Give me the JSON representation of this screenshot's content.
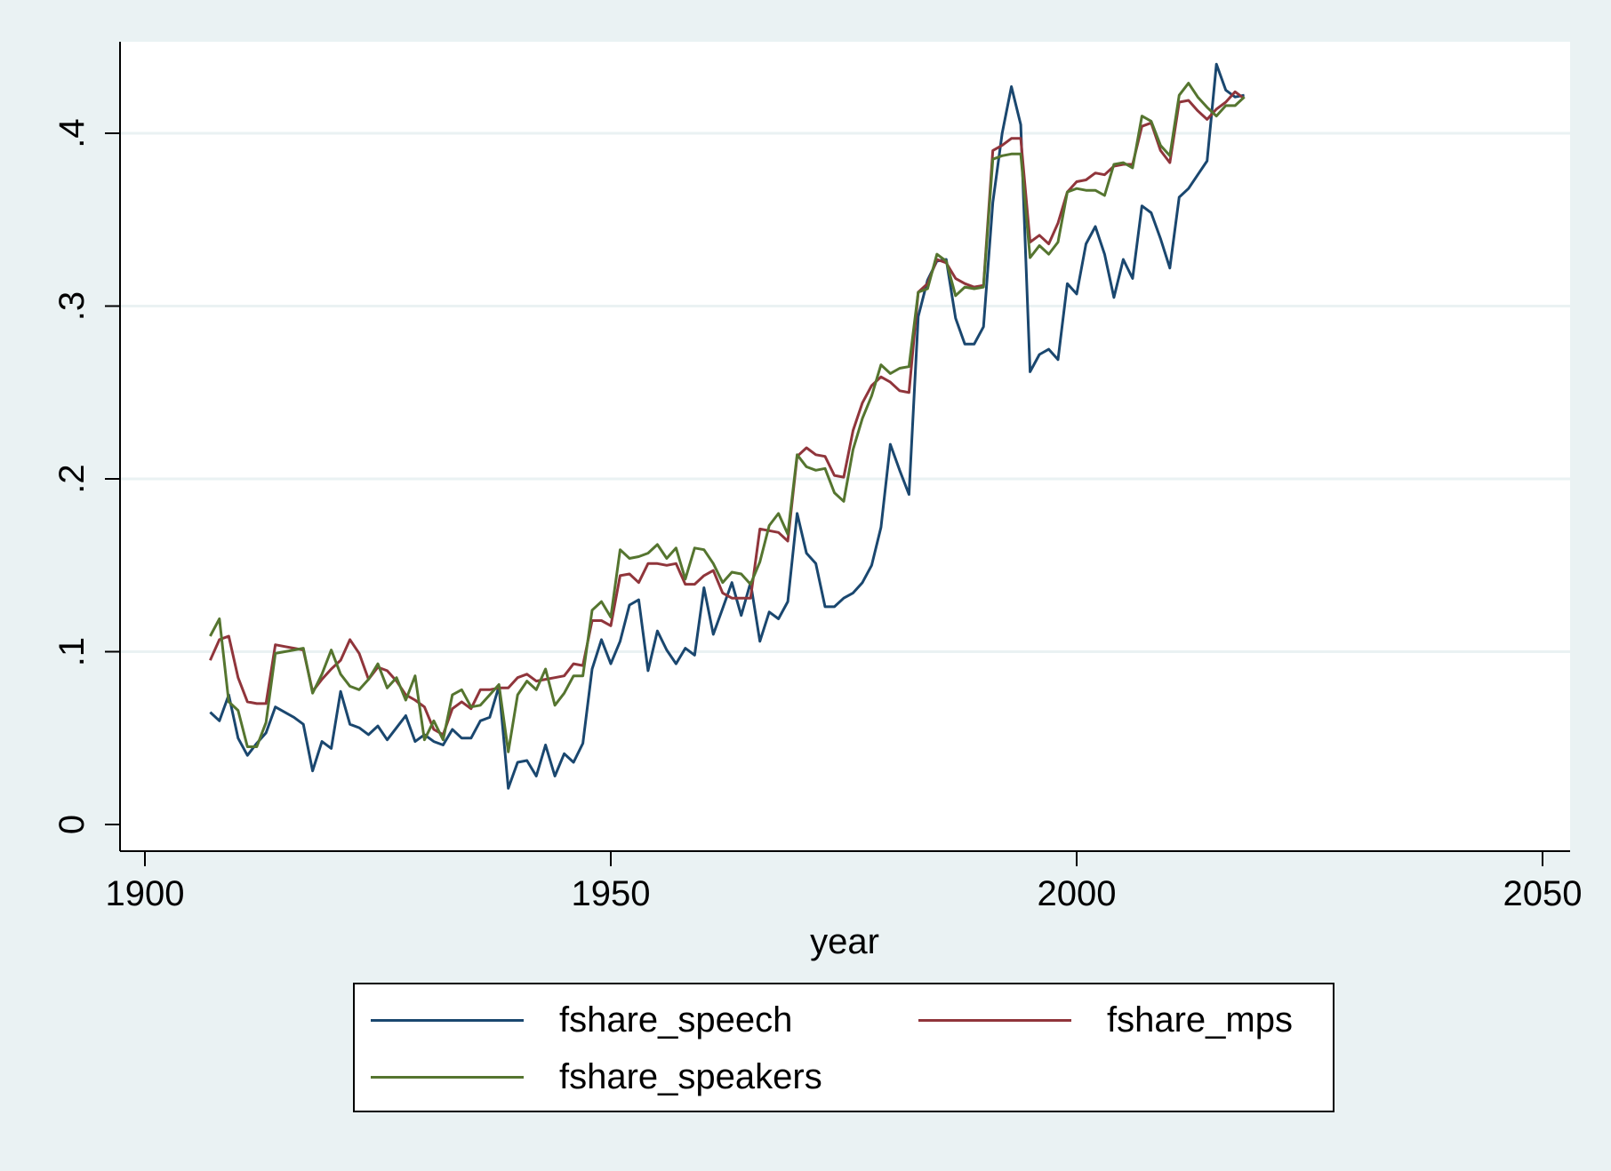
{
  "chart_data": {
    "type": "line",
    "xlabel": "year",
    "ylabel": "",
    "xlim": [
      1900,
      2050
    ],
    "ylim": [
      0,
      0.45
    ],
    "xticks": [
      1900,
      1950,
      2000,
      2050
    ],
    "xtick_labels": [
      "1900",
      "1950",
      "2000",
      "2050"
    ],
    "yticks": [
      0,
      0.1,
      0.2,
      0.3,
      0.4
    ],
    "ytick_labels": [
      "0",
      ".1",
      ".2",
      ".3",
      ".4"
    ],
    "grid": true,
    "legend_position": "bottom",
    "x": [
      1907,
      1908,
      1909,
      1910,
      1911,
      1912,
      1913,
      1914,
      1915,
      1916,
      1917,
      1918,
      1919,
      1920,
      1921,
      1922,
      1923,
      1924,
      1925,
      1926,
      1927,
      1928,
      1929,
      1930,
      1931,
      1932,
      1933,
      1934,
      1935,
      1936,
      1937,
      1938,
      1939,
      1940,
      1941,
      1942,
      1943,
      1944,
      1945,
      1946,
      1947,
      1948,
      1949,
      1950,
      1951,
      1952,
      1953,
      1954,
      1955,
      1956,
      1957,
      1958,
      1959,
      1960,
      1961,
      1962,
      1963,
      1964,
      1965,
      1966,
      1967,
      1968,
      1969,
      1970,
      1971,
      1972,
      1973,
      1974,
      1975,
      1976,
      1977,
      1978,
      1979,
      1980,
      1981,
      1982,
      1983,
      1984,
      1985,
      1986,
      1987,
      1988,
      1989,
      1990,
      1991,
      1992,
      1993,
      1994,
      1995,
      1996,
      1997,
      1998,
      1999,
      2000,
      2001,
      2002,
      2003,
      2004,
      2005,
      2006,
      2007,
      2008,
      2009,
      2010,
      2011,
      2012,
      2013,
      2014,
      2015,
      2016,
      2017,
      2018
    ],
    "series": [
      {
        "name": "fshare_speech",
        "color": "#1a476f",
        "values": [
          0.065,
          0.06,
          0.075,
          0.05,
          0.04,
          0.047,
          0.053,
          0.068,
          0.065,
          0.062,
          0.058,
          0.031,
          0.048,
          0.044,
          0.077,
          0.058,
          0.056,
          0.052,
          0.057,
          0.049,
          0.056,
          0.063,
          0.048,
          0.052,
          0.048,
          0.046,
          0.055,
          0.05,
          0.05,
          0.06,
          0.062,
          0.08,
          0.021,
          0.036,
          0.037,
          0.028,
          0.046,
          0.028,
          0.041,
          0.036,
          0.047,
          0.09,
          0.107,
          0.093,
          0.106,
          0.127,
          0.13,
          0.089,
          0.112,
          0.101,
          0.093,
          0.102,
          0.098,
          0.137,
          0.11,
          0.125,
          0.14,
          0.121,
          0.14,
          0.106,
          0.123,
          0.119,
          0.129,
          0.18,
          0.157,
          0.151,
          0.126,
          0.126,
          0.131,
          0.134,
          0.14,
          0.15,
          0.172,
          0.22,
          0.205,
          0.191,
          0.294,
          0.315,
          0.326,
          0.327,
          0.293,
          0.278,
          0.278,
          0.288,
          0.36,
          0.4,
          0.427,
          0.405,
          0.262,
          0.272,
          0.275,
          0.269,
          0.313,
          0.307,
          0.336,
          0.346,
          0.33,
          0.305,
          0.327,
          0.316,
          0.358,
          0.354,
          0.339,
          0.322,
          0.363,
          0.368,
          0.376,
          0.384,
          0.44,
          0.425,
          0.421,
          0.422
        ]
      },
      {
        "name": "fshare_mps",
        "color": "#90353b",
        "values": [
          0.095,
          0.107,
          0.109,
          0.085,
          0.071,
          0.07,
          0.07,
          0.104,
          0.103,
          0.102,
          0.101,
          0.077,
          0.084,
          0.09,
          0.095,
          0.107,
          0.099,
          0.084,
          0.091,
          0.089,
          0.083,
          0.075,
          0.072,
          0.068,
          0.055,
          0.052,
          0.067,
          0.071,
          0.067,
          0.078,
          0.078,
          0.079,
          0.079,
          0.085,
          0.087,
          0.083,
          0.084,
          0.085,
          0.086,
          0.093,
          0.092,
          0.118,
          0.118,
          0.115,
          0.144,
          0.145,
          0.14,
          0.151,
          0.151,
          0.15,
          0.151,
          0.139,
          0.139,
          0.144,
          0.147,
          0.134,
          0.131,
          0.131,
          0.131,
          0.171,
          0.17,
          0.169,
          0.164,
          0.213,
          0.218,
          0.214,
          0.213,
          0.202,
          0.201,
          0.228,
          0.244,
          0.254,
          0.259,
          0.256,
          0.251,
          0.25,
          0.308,
          0.313,
          0.327,
          0.325,
          0.316,
          0.313,
          0.311,
          0.312,
          0.39,
          0.393,
          0.397,
          0.397,
          0.337,
          0.341,
          0.336,
          0.348,
          0.366,
          0.372,
          0.373,
          0.377,
          0.376,
          0.381,
          0.382,
          0.382,
          0.404,
          0.406,
          0.39,
          0.383,
          0.418,
          0.419,
          0.413,
          0.408,
          0.414,
          0.418,
          0.424,
          0.42
        ]
      },
      {
        "name": "fshare_speakers",
        "color": "#55752f",
        "values": [
          0.109,
          0.119,
          0.071,
          0.066,
          0.045,
          0.045,
          0.059,
          0.099,
          0.1,
          0.101,
          0.102,
          0.076,
          0.087,
          0.101,
          0.087,
          0.08,
          0.078,
          0.084,
          0.093,
          0.079,
          0.085,
          0.072,
          0.086,
          0.049,
          0.06,
          0.049,
          0.075,
          0.078,
          0.068,
          0.069,
          0.075,
          0.081,
          0.042,
          0.075,
          0.083,
          0.078,
          0.09,
          0.069,
          0.076,
          0.086,
          0.086,
          0.124,
          0.129,
          0.12,
          0.159,
          0.154,
          0.155,
          0.157,
          0.162,
          0.154,
          0.16,
          0.142,
          0.16,
          0.159,
          0.151,
          0.14,
          0.146,
          0.145,
          0.139,
          0.152,
          0.173,
          0.18,
          0.168,
          0.214,
          0.207,
          0.205,
          0.206,
          0.192,
          0.187,
          0.217,
          0.235,
          0.248,
          0.266,
          0.261,
          0.264,
          0.265,
          0.308,
          0.31,
          0.33,
          0.326,
          0.306,
          0.311,
          0.31,
          0.311,
          0.385,
          0.387,
          0.388,
          0.388,
          0.328,
          0.335,
          0.33,
          0.337,
          0.366,
          0.368,
          0.367,
          0.367,
          0.364,
          0.382,
          0.383,
          0.38,
          0.41,
          0.407,
          0.393,
          0.387,
          0.422,
          0.429,
          0.421,
          0.415,
          0.41,
          0.416,
          0.416,
          0.421
        ]
      }
    ]
  }
}
